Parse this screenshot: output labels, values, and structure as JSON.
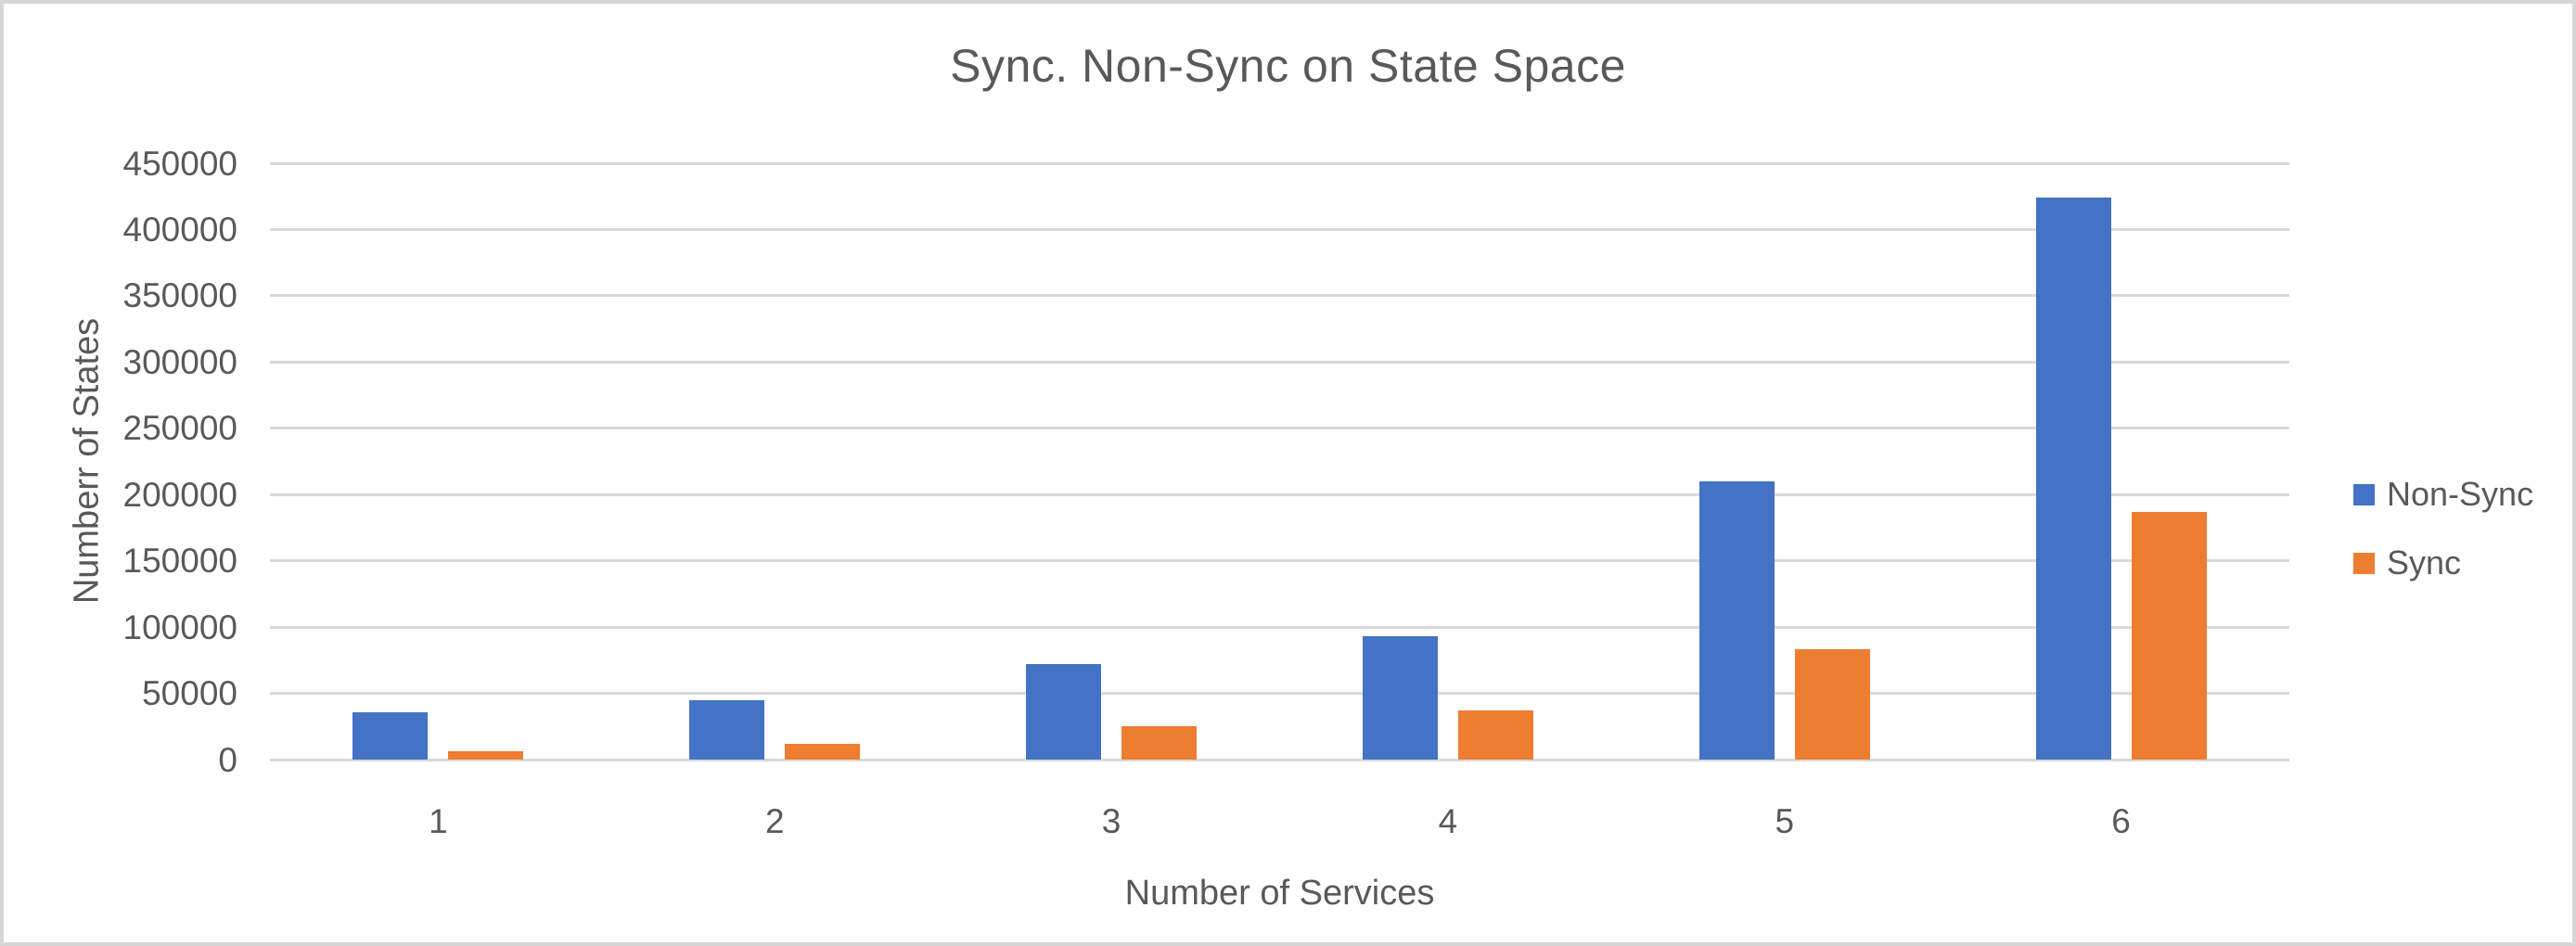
{
  "page": {
    "background": "#ffffff",
    "frame_border_color": "#d6d6d6"
  },
  "chart_data": {
    "type": "bar",
    "title": "Sync. Non-Sync on State Space",
    "xlabel": "Number of Services",
    "ylabel": "Numberr of States",
    "categories": [
      "1",
      "2",
      "3",
      "4",
      "5",
      "6"
    ],
    "series": [
      {
        "name": "Non-Sync",
        "color": "#4472C4",
        "values": [
          36000,
          45000,
          72000,
          93000,
          210000,
          424000
        ]
      },
      {
        "name": "Sync",
        "color": "#ED7D31",
        "values": [
          6000,
          12000,
          25000,
          37000,
          83000,
          187000
        ]
      }
    ],
    "ylim": [
      0,
      450000
    ],
    "ytick_step": 50000,
    "yticks": [
      "0",
      "50000",
      "100000",
      "150000",
      "200000",
      "250000",
      "300000",
      "350000",
      "400000",
      "450000"
    ],
    "grid": "horizontal",
    "gridline_color": "#D9D9D9",
    "text_color": "#595959",
    "legend_position": "right"
  }
}
